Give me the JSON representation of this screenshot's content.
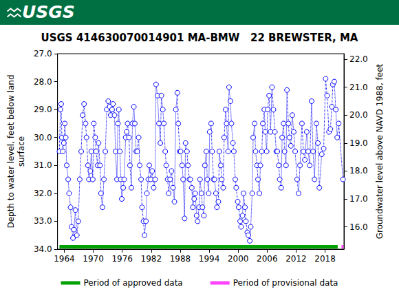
{
  "header": "USGS",
  "chart_data": {
    "type": "scatter",
    "title": "USGS 414630070014901 MA-BMW   22 BREWSTER, MA",
    "y_label": "Depth to water level, feet below land\nsurface",
    "y2_label": "Groundwater level above NAVD 1988, feet",
    "color": "#0000ff",
    "marker": "circle-open",
    "line_style": "dotted",
    "grid": false,
    "legend": "bottom",
    "xlim": [
      1962.6,
      2021.9
    ],
    "xticks": [
      1964,
      1970,
      1976,
      1982,
      1988,
      1994,
      2000,
      2006,
      2012,
      2018
    ],
    "ylim": [
      34,
      27
    ],
    "yticks": [
      {
        "value": 27,
        "label": "27.0"
      },
      {
        "value": 28,
        "label": "28.0"
      },
      {
        "value": 29,
        "label": "29.0"
      },
      {
        "value": 30,
        "label": "30.0"
      },
      {
        "value": 31,
        "label": "31.0"
      },
      {
        "value": 32,
        "label": "32.0"
      },
      {
        "value": 33,
        "label": "33.0"
      },
      {
        "value": 34,
        "label": "34.0"
      }
    ],
    "y2lim": [
      15.2,
      22.2
    ],
    "y2ticks": [
      {
        "value": 16,
        "label": "16.0"
      },
      {
        "value": 17,
        "label": "17.0"
      },
      {
        "value": 18,
        "label": "18.0"
      },
      {
        "value": 19,
        "label": "19.0"
      },
      {
        "value": 20,
        "label": "20.0"
      },
      {
        "value": 21,
        "label": "21.0"
      },
      {
        "value": 22,
        "label": "22.0"
      }
    ],
    "periods": [
      {
        "name": "Period of approved data",
        "color": "#00a000",
        "start": 1963.0,
        "end": 2020.6
      },
      {
        "name": "Period of provisional data",
        "color": "#ff44ff",
        "start": 2021.4,
        "end": 2021.8
      }
    ],
    "x": [
      1963.0,
      1963.2,
      1963.35,
      1963.5,
      1963.7,
      1963.9,
      1964.1,
      1964.3,
      1964.5,
      1964.8,
      1965.0,
      1965.3,
      1965.5,
      1965.8,
      1966.0,
      1966.3,
      1966.6,
      1966.9,
      1967.2,
      1967.5,
      1967.8,
      1968.1,
      1968.4,
      1968.6,
      1968.9,
      1969.1,
      1969.4,
      1969.6,
      1969.9,
      1970.1,
      1970.4,
      1970.6,
      1970.9,
      1971.1,
      1971.4,
      1971.6,
      1971.9,
      1972.2,
      1972.5,
      1972.8,
      1973.1,
      1973.4,
      1973.6,
      1973.9,
      1974.1,
      1974.4,
      1974.6,
      1974.9,
      1975.1,
      1975.3,
      1975.5,
      1975.7,
      1975.9,
      1976.2,
      1976.4,
      1976.7,
      1976.9,
      1977.1,
      1977.4,
      1977.6,
      1977.9,
      1978.1,
      1978.4,
      1978.6,
      1978.9,
      1979.1,
      1979.4,
      1979.6,
      1979.9,
      1980.1,
      1980.4,
      1980.6,
      1980.9,
      1981.1,
      1981.4,
      1981.6,
      1981.9,
      1982.2,
      1982.5,
      1982.8,
      1983.0,
      1983.3,
      1983.6,
      1983.9,
      1984.1,
      1984.4,
      1984.6,
      1984.9,
      1985.1,
      1985.4,
      1985.6,
      1985.9,
      1986.2,
      1986.5,
      1986.8,
      1987.1,
      1987.4,
      1987.6,
      1987.9,
      1988.1,
      1988.4,
      1988.6,
      1988.9,
      1989.1,
      1989.4,
      1989.6,
      1989.9,
      1990.1,
      1990.4,
      1990.6,
      1990.9,
      1991.1,
      1991.4,
      1991.6,
      1991.9,
      1992.1,
      1992.4,
      1992.6,
      1992.9,
      1993.1,
      1993.4,
      1993.6,
      1993.9,
      1994.1,
      1994.4,
      1994.6,
      1994.9,
      1995.1,
      1995.4,
      1995.6,
      1995.9,
      1996.1,
      1996.4,
      1996.6,
      1996.9,
      1997.1,
      1997.4,
      1997.6,
      1997.9,
      1998.1,
      1998.4,
      1998.6,
      1998.9,
      1999.1,
      1999.4,
      1999.6,
      1999.9,
      2000.1,
      2000.4,
      2000.6,
      2000.9,
      2001.1,
      2001.4,
      2001.6,
      2001.9,
      2002.1,
      2002.4,
      2002.6,
      2002.9,
      2003.1,
      2003.4,
      2003.6,
      2003.9,
      2004.1,
      2004.4,
      2004.6,
      2004.9,
      2005.1,
      2005.4,
      2005.6,
      2005.9,
      2006.1,
      2006.4,
      2006.7,
      2007.0,
      2007.3,
      2007.6,
      2007.9,
      2008.1,
      2008.4,
      2008.6,
      2008.9,
      2009.1,
      2009.4,
      2009.6,
      2009.9,
      2010.1,
      2010.4,
      2010.6,
      2010.9,
      2011.2,
      2011.5,
      2011.8,
      2012.2,
      2012.5,
      2012.8,
      2013.2,
      2013.5,
      2013.8,
      2014.2,
      2014.5,
      2014.8,
      2015.2,
      2015.5,
      2015.8,
      2016.2,
      2016.5,
      2016.8,
      2017.3,
      2017.7,
      2018.1,
      2018.4,
      2018.8,
      2019.1,
      2019.4,
      2019.6,
      2019.9,
      2020.2,
      2020.5,
      2020.8,
      2021.7
    ],
    "values": [
      30.5,
      29.0,
      28.8,
      30.0,
      30.5,
      30.2,
      29.5,
      30.0,
      31.0,
      31.5,
      32.0,
      32.5,
      33.2,
      33.6,
      33.3,
      32.6,
      33.5,
      33.0,
      31.5,
      30.5,
      29.2,
      28.8,
      29.5,
      30.0,
      31.0,
      31.5,
      31.2,
      30.5,
      31.5,
      29.5,
      30.0,
      30.5,
      31.0,
      30.2,
      31.0,
      32.0,
      32.5,
      31.5,
      30.5,
      29.0,
      28.7,
      28.9,
      29.2,
      29.0,
      28.8,
      29.2,
      30.5,
      31.5,
      29.5,
      29.0,
      30.5,
      31.5,
      32.2,
      31.8,
      31.5,
      30.0,
      29.8,
      29.5,
      30.0,
      31.0,
      31.8,
      29.5,
      28.9,
      29.5,
      30.5,
      30.5,
      30.0,
      31.0,
      31.5,
      32.5,
      33.0,
      33.5,
      33.0,
      32.0,
      31.5,
      31.0,
      31.5,
      31.2,
      31.8,
      31.5,
      28.1,
      28.5,
      29.5,
      30.2,
      28.5,
      29.0,
      29.5,
      30.5,
      31.0,
      31.5,
      32.0,
      31.5,
      31.2,
      31.8,
      32.3,
      29.0,
      28.4,
      29.5,
      30.5,
      30.5,
      31.0,
      31.5,
      32.9,
      30.2,
      30.5,
      31.0,
      31.5,
      31.5,
      31.8,
      32.5,
      32.2,
      32.0,
      32.8,
      33.0,
      32.5,
      31.5,
      32.0,
      32.5,
      32.8,
      31.0,
      30.5,
      31.5,
      32.0,
      29.8,
      29.5,
      30.5,
      31.5,
      31.5,
      32.0,
      32.5,
      32.3,
      30.5,
      31.0,
      31.5,
      31.8,
      30.0,
      29.0,
      29.5,
      30.5,
      28.2,
      28.7,
      29.5,
      30.2,
      30.5,
      31.5,
      31.8,
      32.3,
      32.5,
      33.0,
      33.2,
      32.8,
      32.0,
      32.5,
      33.0,
      33.4,
      33.5,
      33.7,
      33.2,
      32.0,
      30.0,
      29.5,
      30.5,
      31.0,
      31.5,
      32.0,
      31.0,
      30.5,
      29.5,
      29.0,
      29.8,
      30.5,
      29.0,
      28.5,
      29.8,
      28.2,
      29.0,
      29.8,
      30.5,
      30.5,
      31.0,
      31.5,
      31.8,
      30.0,
      29.5,
      30.5,
      31.0,
      28.3,
      29.5,
      30.0,
      30.3,
      29.2,
      29.8,
      30.5,
      31.5,
      32.0,
      31.0,
      29.5,
      30.5,
      30.8,
      29.8,
      30.5,
      31.0,
      28.7,
      30.5,
      31.5,
      29.5,
      30.2,
      31.8,
      30.6,
      30.4,
      27.9,
      28.5,
      29.8,
      29.7,
      28.9,
      28.1,
      28.0,
      29.0,
      30.0,
      29.5,
      31.5
    ]
  }
}
